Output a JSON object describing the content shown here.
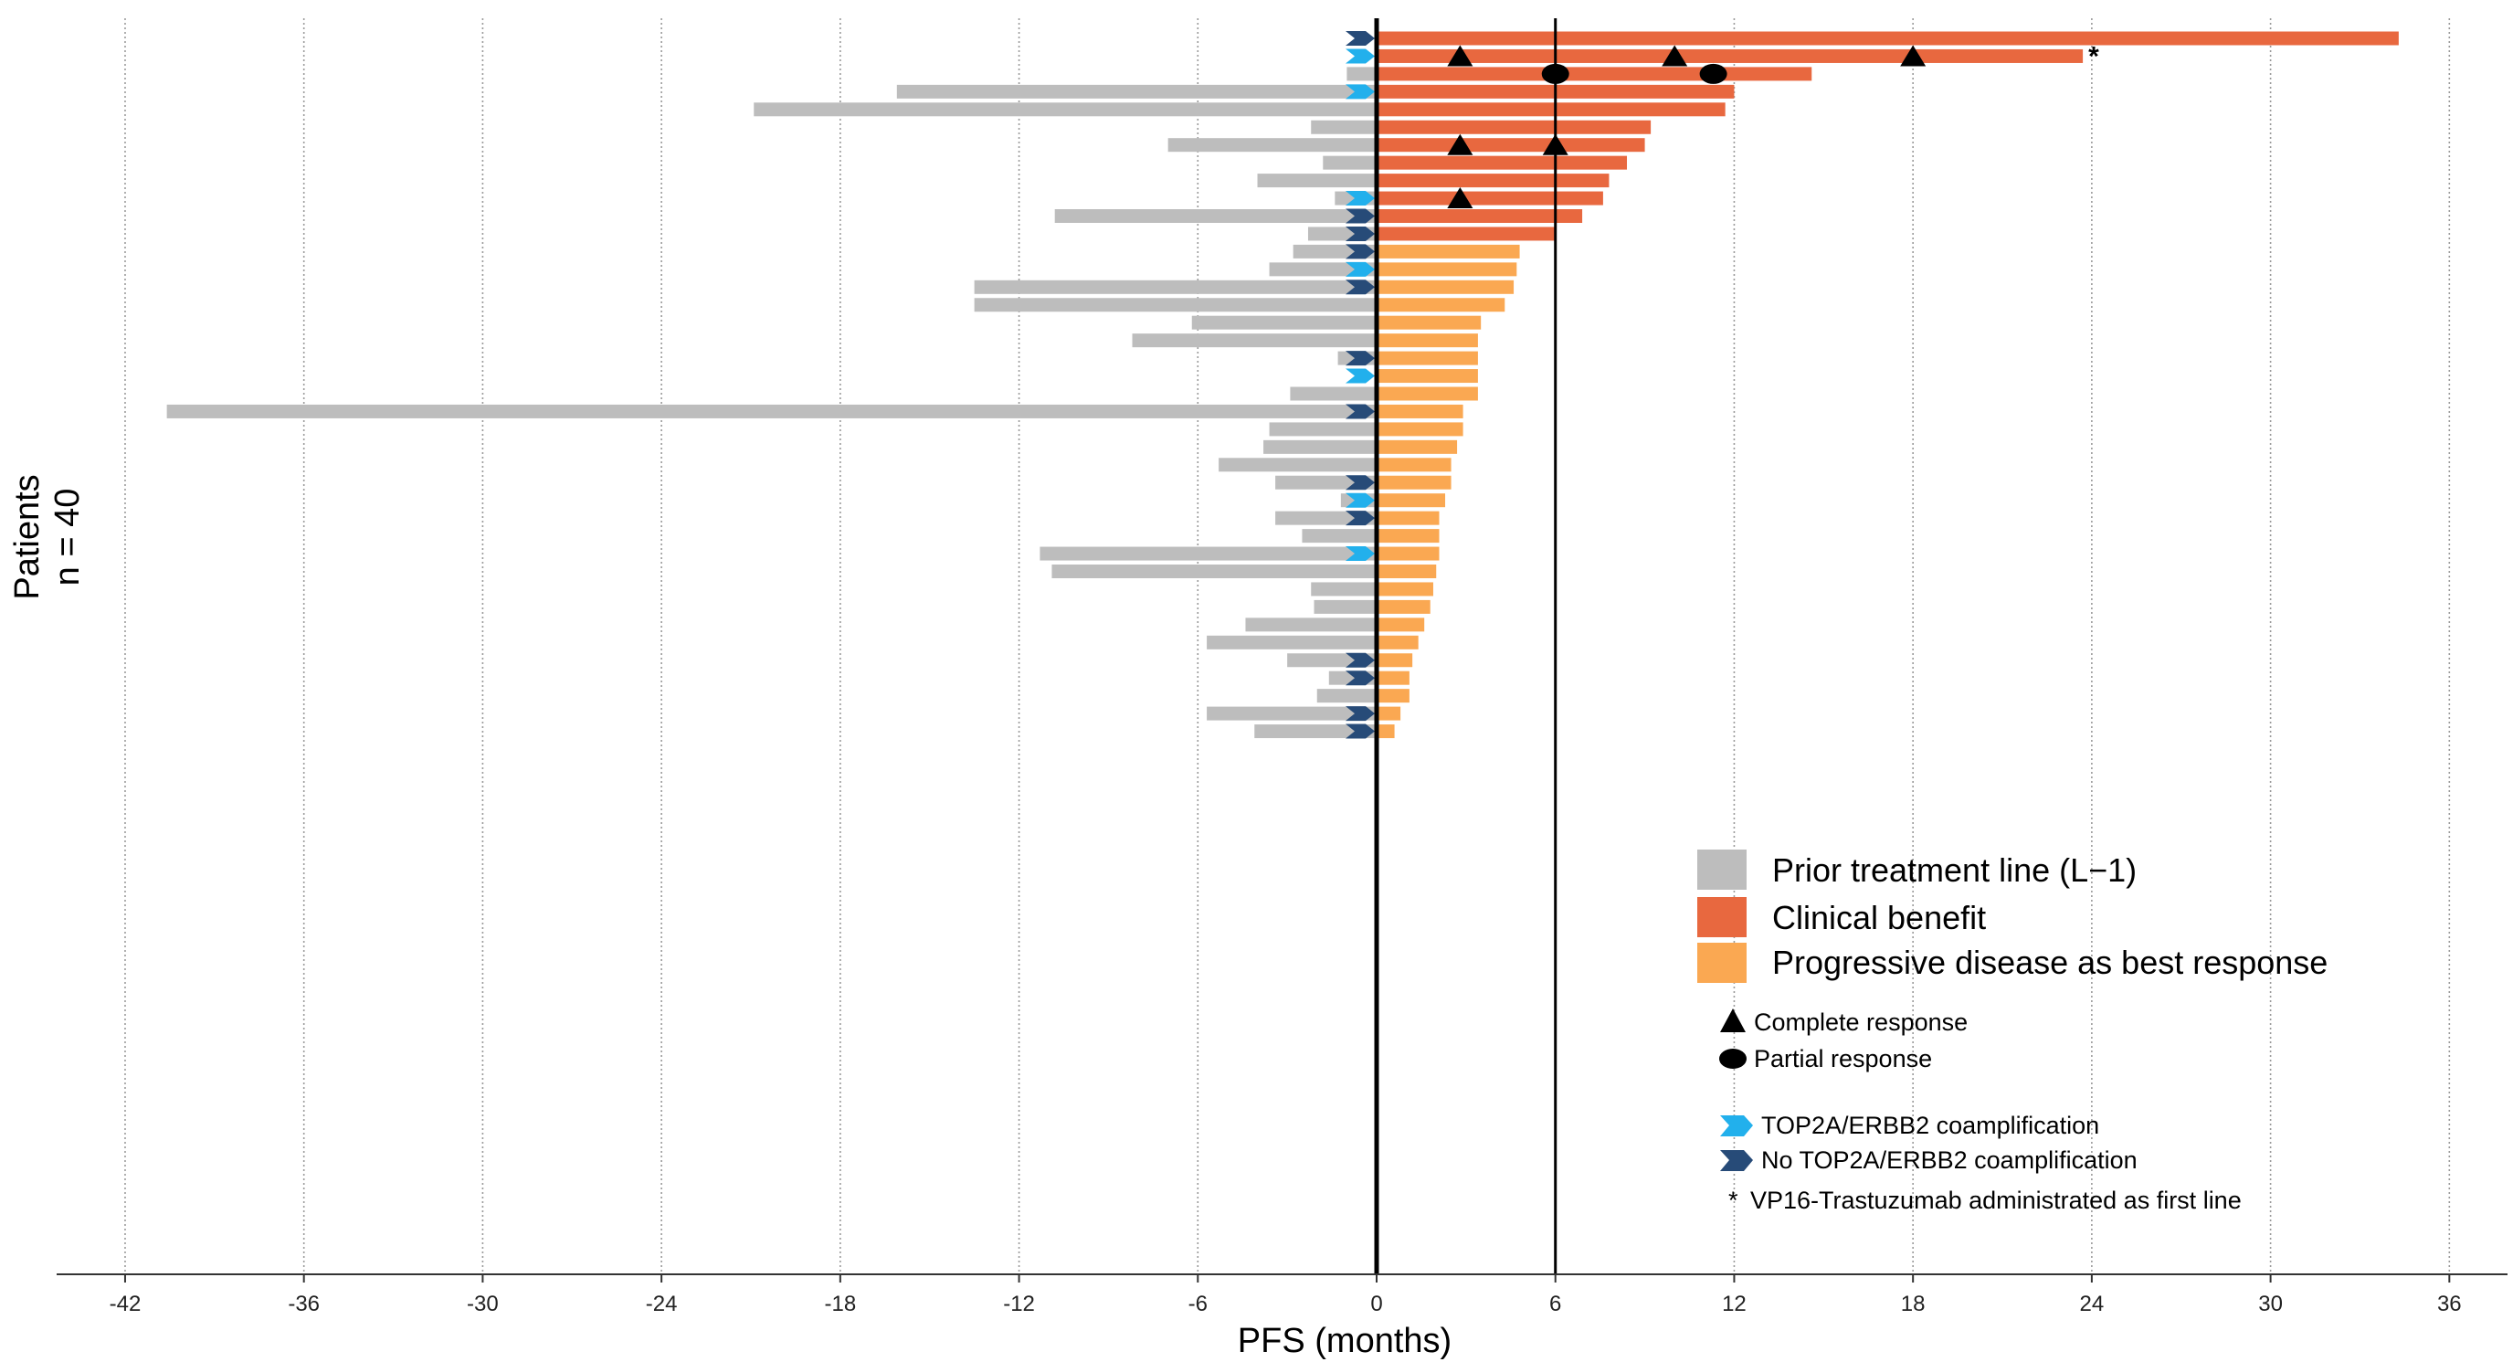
{
  "chart_data": {
    "type": "bar",
    "subtype": "swimmer-plot",
    "title": "",
    "xlabel": "PFS (months)",
    "ylabel": "Patients",
    "ylabel_sub": "n = 40",
    "xlim": [
      -43,
      37
    ],
    "xticks": [
      -42,
      -36,
      -30,
      -24,
      -18,
      -12,
      -6,
      0,
      6,
      12,
      18,
      24,
      30,
      36
    ],
    "xtick_labels": [
      "-42",
      "-36",
      "-30",
      "-24",
      "-18",
      "-12",
      "-6",
      "0",
      "6",
      "12",
      "18",
      "24",
      "30",
      "36"
    ],
    "reference_line_x": 6,
    "grid": "vertical dotted",
    "colors": {
      "prior": "#bdbdbd",
      "benefit": "#e8683f",
      "progressive": "#faa852",
      "coamp": "#22b0ec",
      "no_coamp": "#274b78",
      "marker": "#000000"
    },
    "patients": [
      {
        "prior": 0,
        "pfs": 34.3,
        "category": "benefit",
        "coamp": "no"
      },
      {
        "prior": 0,
        "pfs": 23.7,
        "category": "benefit",
        "coamp": "yes",
        "first_line": true
      },
      {
        "prior": -1.0,
        "pfs": 14.6,
        "category": "benefit",
        "coamp": null
      },
      {
        "prior": -16.1,
        "pfs": 12.0,
        "category": "benefit",
        "coamp": "yes"
      },
      {
        "prior": -20.9,
        "pfs": 11.7,
        "category": "benefit",
        "coamp": null
      },
      {
        "prior": -2.2,
        "pfs": 9.2,
        "category": "benefit",
        "coamp": null
      },
      {
        "prior": -7.0,
        "pfs": 9.0,
        "category": "benefit",
        "coamp": null
      },
      {
        "prior": -1.8,
        "pfs": 8.4,
        "category": "benefit",
        "coamp": null
      },
      {
        "prior": -4.0,
        "pfs": 7.8,
        "category": "benefit",
        "coamp": null
      },
      {
        "prior": -1.4,
        "pfs": 7.6,
        "category": "benefit",
        "coamp": "yes"
      },
      {
        "prior": -10.8,
        "pfs": 6.9,
        "category": "benefit",
        "coamp": "no"
      },
      {
        "prior": -2.3,
        "pfs": 6.0,
        "category": "benefit",
        "coamp": "no"
      },
      {
        "prior": -2.8,
        "pfs": 4.8,
        "category": "progressive",
        "coamp": "no"
      },
      {
        "prior": -3.6,
        "pfs": 4.7,
        "category": "progressive",
        "coamp": "yes"
      },
      {
        "prior": -13.5,
        "pfs": 4.6,
        "category": "progressive",
        "coamp": "no"
      },
      {
        "prior": -13.5,
        "pfs": 4.3,
        "category": "progressive",
        "coamp": null
      },
      {
        "prior": -6.2,
        "pfs": 3.5,
        "category": "progressive",
        "coamp": null
      },
      {
        "prior": -8.2,
        "pfs": 3.4,
        "category": "progressive",
        "coamp": null
      },
      {
        "prior": -1.3,
        "pfs": 3.4,
        "category": "progressive",
        "coamp": "no"
      },
      {
        "prior": 0,
        "pfs": 3.4,
        "category": "progressive",
        "coamp": "yes"
      },
      {
        "prior": -2.9,
        "pfs": 3.4,
        "category": "progressive",
        "coamp": null
      },
      {
        "prior": -40.6,
        "pfs": 2.9,
        "category": "progressive",
        "coamp": "no"
      },
      {
        "prior": -3.6,
        "pfs": 2.9,
        "category": "progressive",
        "coamp": null
      },
      {
        "prior": -3.8,
        "pfs": 2.7,
        "category": "progressive",
        "coamp": null
      },
      {
        "prior": -5.3,
        "pfs": 2.5,
        "category": "progressive",
        "coamp": null
      },
      {
        "prior": -3.4,
        "pfs": 2.5,
        "category": "progressive",
        "coamp": "no"
      },
      {
        "prior": -1.2,
        "pfs": 2.3,
        "category": "progressive",
        "coamp": "yes"
      },
      {
        "prior": -3.4,
        "pfs": 2.1,
        "category": "progressive",
        "coamp": "no"
      },
      {
        "prior": -2.5,
        "pfs": 2.1,
        "category": "progressive",
        "coamp": null
      },
      {
        "prior": -11.3,
        "pfs": 2.1,
        "category": "progressive",
        "coamp": "yes"
      },
      {
        "prior": -10.9,
        "pfs": 2.0,
        "category": "progressive",
        "coamp": null
      },
      {
        "prior": -2.2,
        "pfs": 1.9,
        "category": "progressive",
        "coamp": null
      },
      {
        "prior": -2.1,
        "pfs": 1.8,
        "category": "progressive",
        "coamp": null
      },
      {
        "prior": -4.4,
        "pfs": 1.6,
        "category": "progressive",
        "coamp": null
      },
      {
        "prior": -5.7,
        "pfs": 1.4,
        "category": "progressive",
        "coamp": null
      },
      {
        "prior": -3.0,
        "pfs": 1.2,
        "category": "progressive",
        "coamp": "no"
      },
      {
        "prior": -1.6,
        "pfs": 1.1,
        "category": "progressive",
        "coamp": "no"
      },
      {
        "prior": -2.0,
        "pfs": 1.1,
        "category": "progressive",
        "coamp": null
      },
      {
        "prior": -5.7,
        "pfs": 0.8,
        "category": "progressive",
        "coamp": "no"
      },
      {
        "prior": -4.1,
        "pfs": 0.6,
        "category": "progressive",
        "coamp": "no"
      }
    ],
    "markers": [
      {
        "patient": 2,
        "x": 2.8,
        "type": "complete"
      },
      {
        "patient": 2,
        "x": 10.0,
        "type": "complete"
      },
      {
        "patient": 2,
        "x": 18.0,
        "type": "complete"
      },
      {
        "patient": 3,
        "x": 6.0,
        "type": "partial"
      },
      {
        "patient": 3,
        "x": 11.3,
        "type": "partial"
      },
      {
        "patient": 7,
        "x": 2.8,
        "type": "complete"
      },
      {
        "patient": 7,
        "x": 6.0,
        "type": "complete"
      },
      {
        "patient": 10,
        "x": 2.8,
        "type": "complete"
      }
    ],
    "asterisk": "*",
    "legend": {
      "placement": "bottom-right",
      "prior": "Prior treatment line (L−1)",
      "benefit": "Clinical benefit",
      "progressive": "Progressive disease as best response",
      "complete": "Complete response",
      "partial": "Partial response",
      "coamp": "TOP2A/ERBB2 coamplification",
      "no_coamp": "No TOP2A/ERBB2 coamplification",
      "asterisk_note": "VP16-Trastuzumab administrated as first line"
    }
  }
}
